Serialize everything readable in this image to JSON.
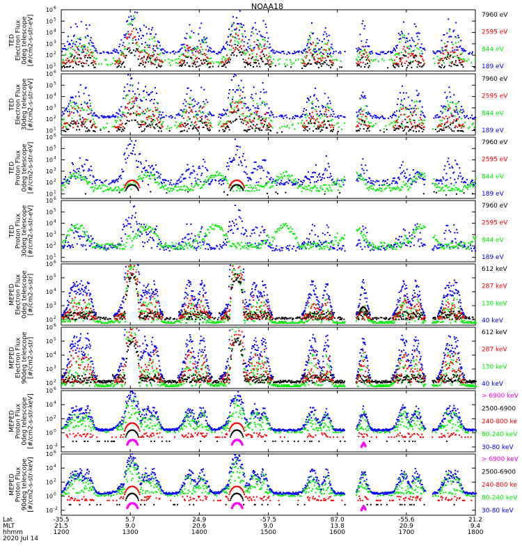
{
  "title": "NOAA18",
  "colors": {
    "blue": "#0000ff",
    "red": "#ff0000",
    "green": "#00ee00",
    "black": "#000000",
    "magenta": "#ff00ff"
  },
  "chart_data": [
    {
      "type": "scatter",
      "ylabel": [
        "TED",
        "Electron Flux",
        "0deg telescope",
        "[#/cm2-s-str-eV]"
      ],
      "yscale": "log",
      "ytick_exponents": [
        1,
        2,
        3,
        4,
        5,
        6
      ],
      "ylim_exp": [
        0.6,
        6.0
      ],
      "series": [
        {
          "name": "7960 eV",
          "color": "#000000"
        },
        {
          "name": "2595 eV",
          "color": "#ff0000"
        },
        {
          "name": "844 eV",
          "color": "#00ee00"
        },
        {
          "name": "189 eV",
          "color": "#0000ff"
        }
      ]
    },
    {
      "type": "scatter",
      "ylabel": [
        "TED",
        "Electron Flux",
        "30deg telescope",
        "[#/cm2-s-str-eV]"
      ],
      "yscale": "log",
      "ytick_exponents": [
        1,
        2,
        3,
        4,
        5,
        6
      ],
      "ylim_exp": [
        0.6,
        6.0
      ],
      "series": [
        {
          "name": "7960 eV",
          "color": "#000000"
        },
        {
          "name": "2595 eV",
          "color": "#ff0000"
        },
        {
          "name": "844 eV",
          "color": "#00ee00"
        },
        {
          "name": "189 eV",
          "color": "#0000ff"
        }
      ]
    },
    {
      "type": "scatter",
      "ylabel": [
        "TED",
        "Proton Flux",
        "0deg telescope",
        "[#/cm2-s-str-eV]"
      ],
      "yscale": "log",
      "ytick_exponents": [
        1,
        2,
        3,
        4,
        5,
        6
      ],
      "ylim_exp": [
        0.6,
        6.0
      ],
      "series": [
        {
          "name": "7960 eV",
          "color": "#000000"
        },
        {
          "name": "2595 eV",
          "color": "#ff0000"
        },
        {
          "name": "844 eV",
          "color": "#00ee00"
        },
        {
          "name": "189 eV",
          "color": "#0000ff"
        }
      ]
    },
    {
      "type": "scatter",
      "ylabel": [
        "TED",
        "Proton Flux",
        "30deg telescope",
        "[#/cm2-s-str-eV]"
      ],
      "yscale": "log",
      "ytick_exponents": [
        1,
        2,
        3,
        4,
        5,
        6
      ],
      "ylim_exp": [
        0.6,
        6.0
      ],
      "series": [
        {
          "name": "7960 eV",
          "color": "#000000"
        },
        {
          "name": "2595 eV",
          "color": "#ff0000"
        },
        {
          "name": "844 eV",
          "color": "#00ee00"
        },
        {
          "name": "189 eV",
          "color": "#0000ff"
        }
      ]
    },
    {
      "type": "scatter",
      "ylabel": [
        "MEPED",
        "Electron Flux",
        "0deg telescope",
        "[#/cm2-s-str]"
      ],
      "yscale": "log",
      "ytick_exponents": [
        2,
        3,
        4,
        5,
        6
      ],
      "ylim_exp": [
        1.6,
        6.0
      ],
      "series": [
        {
          "name": "612 keV",
          "color": "#000000"
        },
        {
          "name": "287 keV",
          "color": "#ff0000"
        },
        {
          "name": "130 keV",
          "color": "#00ee00"
        },
        {
          "name": "40 keV",
          "color": "#0000ff"
        }
      ]
    },
    {
      "type": "scatter",
      "ylabel": [
        "MEPED",
        "Electron Flux",
        "90deg telescope",
        "[#/cm2-s-str]"
      ],
      "yscale": "log",
      "ytick_exponents": [
        2,
        3,
        4,
        5,
        6
      ],
      "ylim_exp": [
        1.6,
        6.0
      ],
      "series": [
        {
          "name": "612 keV",
          "color": "#000000"
        },
        {
          "name": "287 keV",
          "color": "#ff0000"
        },
        {
          "name": "130 keV",
          "color": "#00ee00"
        },
        {
          "name": "40 keV",
          "color": "#0000ff"
        }
      ]
    },
    {
      "type": "scatter",
      "ylabel": [
        "MEPED",
        "Proton Flux",
        "0deg telescope",
        "[#/cm2-s-str-keV]"
      ],
      "yscale": "log",
      "ytick_exponents": [
        -2,
        0,
        2,
        4,
        6
      ],
      "ylim_exp": [
        -2.7,
        6.0
      ],
      "series": [
        {
          "name": "> 6900 keV",
          "color": "#ff00ff"
        },
        {
          "name": "2500-6900",
          "color": "#000000"
        },
        {
          "name": "240-800 ke",
          "color": "#ff0000"
        },
        {
          "name": "80-240 keV",
          "color": "#00ee00"
        },
        {
          "name": "30-80 keV",
          "color": "#0000ff"
        }
      ]
    },
    {
      "type": "scatter",
      "ylabel": [
        "MEPED",
        "Proton Flux",
        "90deg telescope",
        "[#/cm2-s-str-keV]"
      ],
      "yscale": "log",
      "ytick_exponents": [
        -2,
        0,
        2,
        4,
        6
      ],
      "ylim_exp": [
        -2.7,
        6.0
      ],
      "series": [
        {
          "name": "> 6900 keV",
          "color": "#ff00ff"
        },
        {
          "name": "2500-6900",
          "color": "#000000"
        },
        {
          "name": "240-800 ke",
          "color": "#ff0000"
        },
        {
          "name": "80-240 keV",
          "color": "#00ee00"
        },
        {
          "name": "30-80 keV",
          "color": "#0000ff"
        }
      ]
    }
  ],
  "xaxis": {
    "row_labels": [
      "Lat",
      "MLT",
      "hhmm",
      "2020 Jul 14"
    ],
    "ticks": [
      {
        "lat": "-35.5",
        "mlt": "21.5",
        "hhmm": "1200"
      },
      {
        "lat": "5.7",
        "mlt": "9.0",
        "hhmm": "1300"
      },
      {
        "lat": "24.9",
        "mlt": "20.6",
        "hhmm": "1400"
      },
      {
        "lat": "-57.5",
        "mlt": "9.0",
        "hhmm": "1500"
      },
      {
        "lat": "87.0",
        "mlt": "13.8",
        "hhmm": "1600"
      },
      {
        "lat": "-55.6",
        "mlt": "20.9",
        "hhmm": "1700"
      },
      {
        "lat": "21.2",
        "mlt": "9.4",
        "hhmm": "1800"
      }
    ]
  }
}
